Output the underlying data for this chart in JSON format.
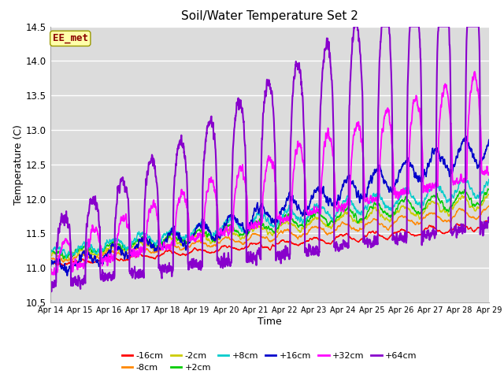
{
  "title": "Soil/Water Temperature Set 2",
  "xlabel": "Time",
  "ylabel": "Temperature (C)",
  "ylim": [
    10.5,
    14.5
  ],
  "xlim": [
    0,
    15
  ],
  "xtick_labels": [
    "Apr 14",
    "Apr 15",
    "Apr 16",
    "Apr 17",
    "Apr 18",
    "Apr 19",
    "Apr 20",
    "Apr 21",
    "Apr 22",
    "Apr 23",
    "Apr 24",
    "Apr 25",
    "Apr 26",
    "Apr 27",
    "Apr 28",
    "Apr 29"
  ],
  "bg_color": "#dcdcdc",
  "annotation_text": "EE_met",
  "annotation_color": "#8b0000",
  "annotation_bg": "#ffffaa",
  "legend_entries": [
    "-16cm",
    "-8cm",
    "-2cm",
    "+2cm",
    "+8cm",
    "+16cm",
    "+32cm",
    "+64cm"
  ],
  "legend_colors": [
    "#ff0000",
    "#ff8800",
    "#cccc00",
    "#00cc00",
    "#00cccc",
    "#0000cc",
    "#ff00ff",
    "#8800cc"
  ],
  "title_fontsize": 11,
  "axis_fontsize": 9
}
